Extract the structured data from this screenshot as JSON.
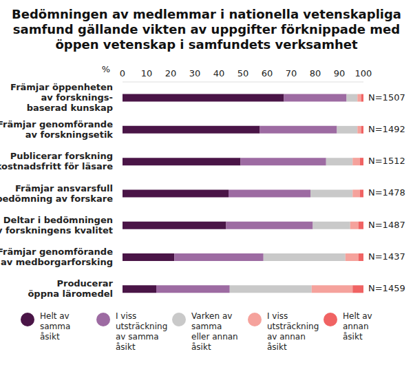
{
  "chart_data": {
    "type": "bar",
    "orientation": "horizontal",
    "stacked": true,
    "grid": false,
    "legend": "bottom",
    "title": "Bedömningen av medlemmar i nationella vetenskapliga\nsamfund gällande vikten av uppgifter förknippade med\nöppen vetenskap i samfundets verksamhet",
    "x_label": "%",
    "categories": [
      "Främjar öppenheten\nav forsknings-\nbaserad kunskap",
      "Främjar genomförande\nav forskningsetik",
      "Publicerar forskning\nkostnadsfritt för läsare",
      "Främjar ansvarsfull\nbedömning av forskare",
      "Deltar i bedömningen\nav forskningens kvalitet",
      "Främjar genomförande\nav medborgarforsking",
      "Producerar\nöppna läromedel"
    ],
    "n_labels": [
      "N=1507",
      "N=1492",
      "N=1512",
      "N=1478",
      "N=1487",
      "N=1437",
      "N=1459"
    ],
    "xlim": [
      0,
      100
    ],
    "xticks": [
      0,
      10,
      20,
      30,
      40,
      50,
      60,
      70,
      80,
      90,
      100
    ],
    "series": [
      {
        "name": "Helt av\nsamma\nåsikt",
        "color": "#4a1547",
        "values": [
          67,
          57,
          49,
          44,
          43,
          21.5,
          14
        ]
      },
      {
        "name": "I viss\nutsträckning\nav samma\nåsikt",
        "color": "#9d6ba2",
        "values": [
          26,
          32,
          35.5,
          34,
          36,
          37,
          30.5
        ]
      },
      {
        "name": "Varken av\nsamma\neller annan\nåsikt",
        "color": "#c9c9c9",
        "values": [
          4.5,
          8.5,
          11,
          17.5,
          15.5,
          34,
          34
        ]
      },
      {
        "name": "I viss\nutsträckning\nav annan\nåsikt",
        "color": "#f5a29c",
        "values": [
          1.5,
          1.5,
          3,
          3,
          3.5,
          5.5,
          17
        ]
      },
      {
        "name": "Helt av\nannan\nåsikt",
        "color": "#f06363",
        "values": [
          1,
          1,
          1.5,
          1.5,
          2,
          2,
          4.5
        ]
      }
    ]
  }
}
